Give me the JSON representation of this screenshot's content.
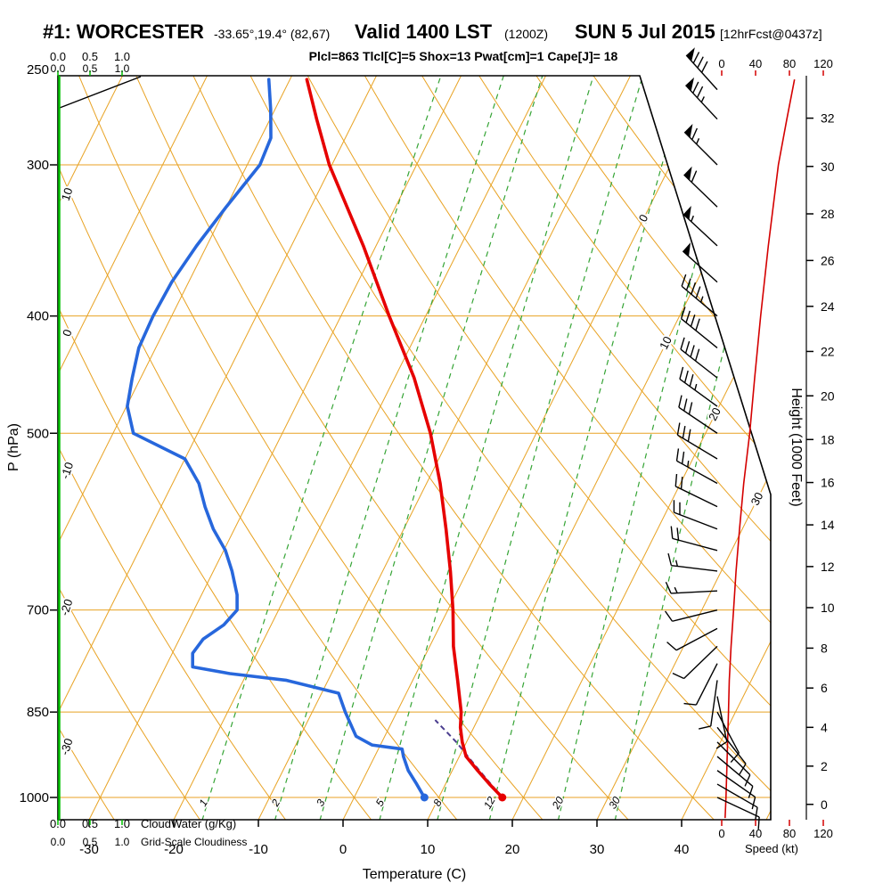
{
  "header": {
    "station": "#1: WORCESTER",
    "coords": "-33.65°,19.4° (82,67)",
    "valid": "Valid 1400 LST",
    "valid_z": "(1200Z)",
    "valid_date": "SUN 5 Jul 2015",
    "fcst": "[12hrFcst@0437z]",
    "indices": "Plcl=863 Tlcl[C]=5 Shox=13 Pwat[cm]=1 Cape[J]= 18"
  },
  "axes": {
    "pressure": {
      "label": "P (hPa)",
      "ticks": [
        250,
        300,
        400,
        500,
        700,
        850,
        1000
      ]
    },
    "temperature": {
      "label": "Temperature (C)",
      "ticks": [
        -30,
        -20,
        -10,
        0,
        10,
        20,
        30,
        40
      ]
    },
    "height": {
      "label": "Height (1000 Feet)",
      "ticks": [
        0,
        2,
        4,
        6,
        8,
        10,
        12,
        14,
        16,
        18,
        20,
        22,
        24,
        26,
        28,
        30,
        32
      ]
    },
    "speed": {
      "label": "Speed (kt)",
      "ticks": [
        0,
        40,
        80,
        120
      ]
    },
    "cloudwater": {
      "label": "CloudWater (g/Kg)",
      "ticks": [
        "0.0",
        "0.5",
        "1.0"
      ]
    },
    "cloudiness": {
      "label": "Grid-Scale Cloudiness",
      "ticks": [
        "0.0",
        "0.5",
        "1.0"
      ]
    }
  },
  "grid": {
    "isotherm_step_c": 10,
    "isotherm_labels": [
      0,
      10,
      20,
      30
    ],
    "dry_adiabat_labels": [
      10,
      0,
      -10,
      -20,
      -30
    ],
    "mixing_ratio_lines_gkg": [
      1,
      2,
      3,
      5,
      8,
      12,
      20,
      30
    ]
  },
  "chart_data": {
    "type": "skewt-log-p-sounding",
    "temperature_profile_hpa_c": [
      [
        1000,
        17.5
      ],
      [
        975,
        15.2
      ],
      [
        950,
        13.0
      ],
      [
        925,
        10.8
      ],
      [
        900,
        9.5
      ],
      [
        875,
        8.4
      ],
      [
        850,
        7.6
      ],
      [
        800,
        5.3
      ],
      [
        750,
        2.8
      ],
      [
        700,
        0.6
      ],
      [
        650,
        -2.0
      ],
      [
        600,
        -5.0
      ],
      [
        550,
        -8.4
      ],
      [
        500,
        -12.5
      ],
      [
        450,
        -17.7
      ],
      [
        400,
        -24.3
      ],
      [
        350,
        -31.5
      ],
      [
        300,
        -40.3
      ],
      [
        275,
        -44.5
      ],
      [
        255,
        -48.0
      ]
    ],
    "dewpoint_profile_hpa_c": [
      [
        1000,
        8.3
      ],
      [
        975,
        6.6
      ],
      [
        950,
        4.8
      ],
      [
        925,
        3.4
      ],
      [
        912,
        2.8
      ],
      [
        905,
        -1.0
      ],
      [
        890,
        -3.4
      ],
      [
        850,
        -6.1
      ],
      [
        820,
        -8.0
      ],
      [
        800,
        -15.0
      ],
      [
        790,
        -22.0
      ],
      [
        780,
        -26.8
      ],
      [
        760,
        -27.6
      ],
      [
        740,
        -27.2
      ],
      [
        720,
        -25.6
      ],
      [
        700,
        -24.9
      ],
      [
        680,
        -25.8
      ],
      [
        650,
        -27.8
      ],
      [
        625,
        -29.8
      ],
      [
        600,
        -32.5
      ],
      [
        575,
        -34.8
      ],
      [
        550,
        -36.9
      ],
      [
        525,
        -40.0
      ],
      [
        500,
        -47.6
      ],
      [
        475,
        -49.9
      ],
      [
        450,
        -51.0
      ],
      [
        425,
        -52.0
      ],
      [
        400,
        -52.2
      ],
      [
        375,
        -52.0
      ],
      [
        350,
        -51.2
      ],
      [
        325,
        -50.0
      ],
      [
        300,
        -48.5
      ],
      [
        285,
        -48.8
      ],
      [
        270,
        -50.5
      ],
      [
        255,
        -52.5
      ]
    ],
    "parcel_path_hpa_c": [
      [
        1000,
        17.5
      ],
      [
        950,
        13.2
      ],
      [
        900,
        8.8
      ],
      [
        863,
        5.0
      ]
    ],
    "lcl_hpa": 863,
    "wind_speed_profile_hpa_kt": [
      [
        1040,
        4
      ],
      [
        1000,
        5
      ],
      [
        950,
        6
      ],
      [
        900,
        7
      ],
      [
        850,
        8
      ],
      [
        800,
        9
      ],
      [
        750,
        11
      ],
      [
        700,
        14
      ],
      [
        650,
        17
      ],
      [
        600,
        21
      ],
      [
        550,
        26
      ],
      [
        500,
        33
      ],
      [
        450,
        39
      ],
      [
        400,
        46
      ],
      [
        350,
        55
      ],
      [
        300,
        67
      ],
      [
        275,
        77
      ],
      [
        255,
        86
      ]
    ],
    "wind_barbs": [
      [
        1000,
        8,
        115
      ],
      [
        975,
        10,
        120
      ],
      [
        950,
        10,
        125
      ],
      [
        925,
        10,
        130
      ],
      [
        900,
        10,
        135
      ],
      [
        875,
        8,
        142
      ],
      [
        850,
        8,
        152
      ],
      [
        825,
        8,
        168
      ],
      [
        800,
        8,
        188
      ],
      [
        775,
        8,
        207
      ],
      [
        750,
        10,
        226
      ],
      [
        725,
        10,
        242
      ],
      [
        700,
        12,
        256
      ],
      [
        675,
        14,
        267
      ],
      [
        650,
        16,
        277
      ],
      [
        625,
        18,
        285
      ],
      [
        600,
        20,
        291
      ],
      [
        575,
        22,
        296
      ],
      [
        550,
        25,
        299
      ],
      [
        525,
        28,
        301
      ],
      [
        500,
        32,
        304
      ],
      [
        475,
        35,
        306
      ],
      [
        450,
        38,
        308
      ],
      [
        425,
        42,
        309
      ],
      [
        400,
        45,
        310
      ],
      [
        375,
        50,
        312
      ],
      [
        350,
        55,
        313
      ],
      [
        325,
        60,
        314
      ],
      [
        300,
        65,
        315
      ],
      [
        275,
        75,
        317
      ],
      [
        260,
        82,
        318
      ]
    ],
    "surface": {
      "pressure_hpa": 1000,
      "temp_c": 17.5,
      "dewpoint_c": 8.3
    }
  },
  "colors": {
    "grid": "#E8A223",
    "mixing": "#35A435",
    "cloudwater_axis": "#00C000",
    "temp_curve": "#E60000",
    "dew_curve": "#2767DC",
    "speed_curve": "#D40000",
    "indices_text": "#C000C0",
    "parcel": "#4B3E8F",
    "barbs": "#000000",
    "frame": "#000000"
  }
}
